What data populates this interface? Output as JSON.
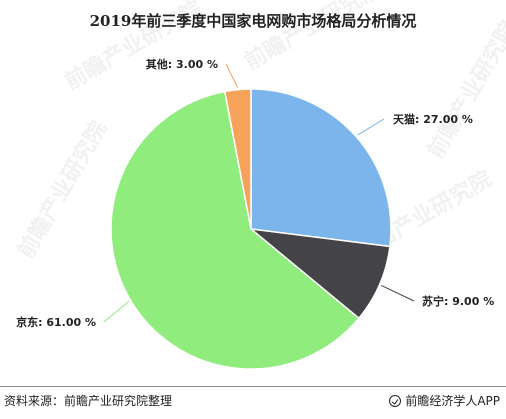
{
  "title": "2019年前三季度中国家电网购市场格局分析情况",
  "chart_data": {
    "type": "pie",
    "series": [
      {
        "name": "天猫",
        "value": 27.0,
        "label": "天猫: 27.00 %",
        "color": "#7cb5ec"
      },
      {
        "name": "苏宁",
        "value": 9.0,
        "label": "苏宁: 9.00 %",
        "color": "#434348"
      },
      {
        "name": "京东",
        "value": 61.0,
        "label": "京东: 61.00 %",
        "color": "#90ed7d"
      },
      {
        "name": "其他",
        "value": 3.0,
        "label": "其他: 3.00 %",
        "color": "#f7a35c"
      }
    ]
  },
  "footer": {
    "source": "资料来源：前瞻产业研究院整理",
    "brand": "前瞻经济学人APP"
  },
  "watermark": "前瞻产业研究院"
}
